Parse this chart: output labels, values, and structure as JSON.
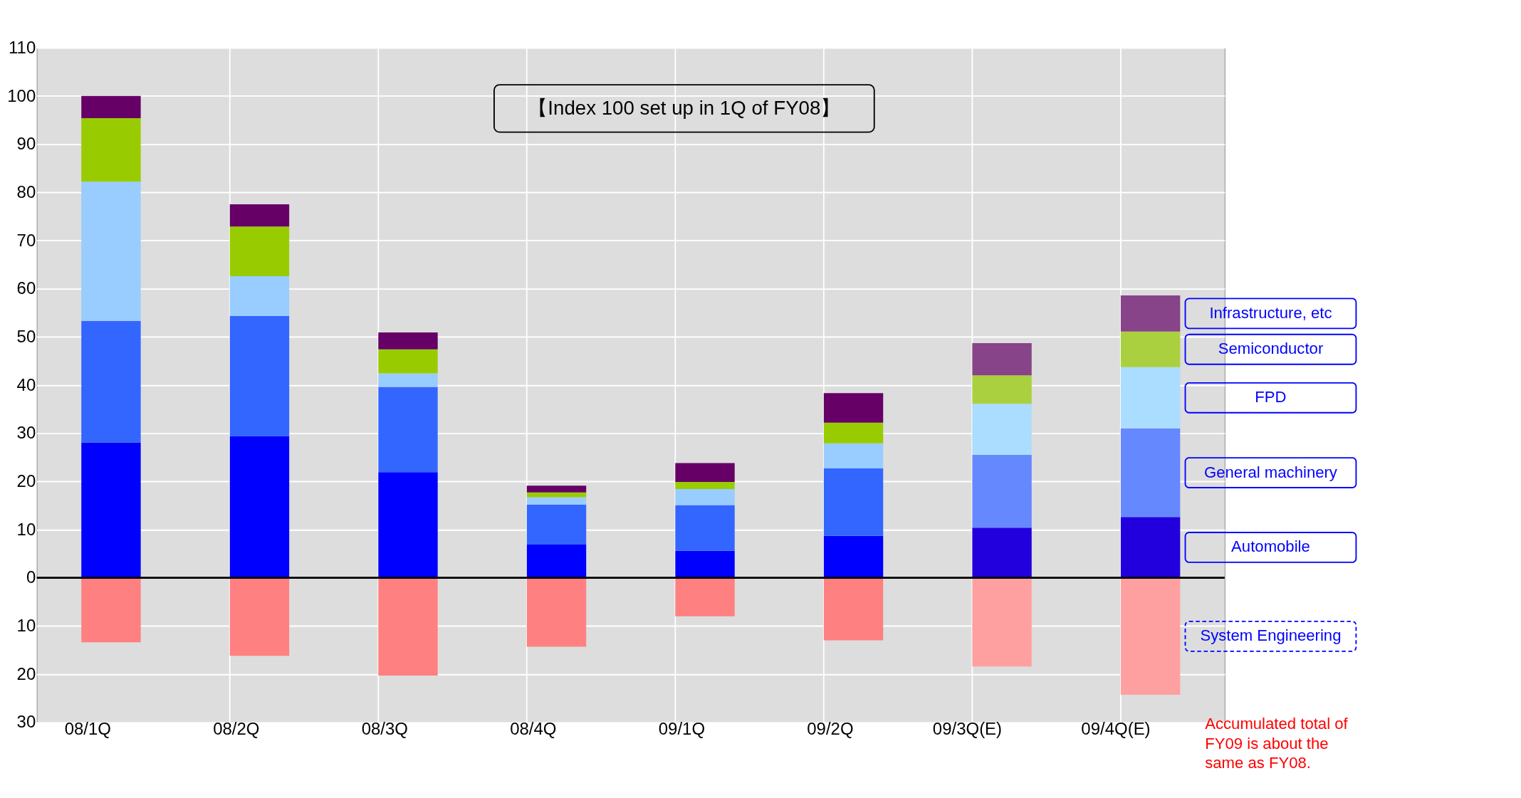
{
  "chart_data": {
    "type": "bar",
    "stacked": true,
    "categories": [
      "08/1Q",
      "08/2Q",
      "08/3Q",
      "08/4Q",
      "09/1Q",
      "09/2Q",
      "09/3Q(E)",
      "09/4Q(E)"
    ],
    "series": [
      {
        "name": "Automobile",
        "colors": [
          "#0000ff",
          "#0000ff",
          "#0000ff",
          "#0000ff",
          "#0000ff",
          "#0000ff",
          "#2200dd",
          "#2200dd"
        ],
        "values": [
          28.1,
          29.4,
          21.9,
          6.9,
          5.6,
          8.7,
          10.4,
          12.6
        ]
      },
      {
        "name": "General machinery",
        "colors": [
          "#3366ff",
          "#3366ff",
          "#3366ff",
          "#3366ff",
          "#3366ff",
          "#3366ff",
          "#6688ff",
          "#6688ff"
        ],
        "values": [
          25.2,
          24.9,
          17.7,
          8.3,
          9.5,
          14.0,
          15.1,
          18.4
        ]
      },
      {
        "name": "FPD",
        "colors": [
          "#99ccff",
          "#99ccff",
          "#99ccff",
          "#99ccff",
          "#99ccff",
          "#99ccff",
          "#aaddff",
          "#aaddff"
        ],
        "values": [
          28.9,
          8.3,
          2.8,
          1.5,
          3.3,
          5.2,
          10.6,
          12.7
        ]
      },
      {
        "name": "Semiconductor",
        "colors": [
          "#99cc00",
          "#99cc00",
          "#99cc00",
          "#99cc00",
          "#99cc00",
          "#99cc00",
          "#aad040",
          "#aad040"
        ],
        "values": [
          13.2,
          10.3,
          5.0,
          1.0,
          1.5,
          4.3,
          5.9,
          7.4
        ]
      },
      {
        "name": "Infrastructure, etc",
        "colors": [
          "#660066",
          "#660066",
          "#660066",
          "#660066",
          "#660066",
          "#660066",
          "#884488",
          "#884488"
        ],
        "values": [
          4.6,
          4.6,
          3.5,
          1.4,
          3.9,
          6.1,
          6.7,
          7.5
        ]
      },
      {
        "name": "System Engineering",
        "colors": [
          "#ff8080",
          "#ff8080",
          "#ff8080",
          "#ff8080",
          "#ff8080",
          "#ff8080",
          "#ffa0a0",
          "#ffa0a0"
        ],
        "values": [
          -13.4,
          -16.2,
          -20.3,
          -14.3,
          -8.0,
          -13.0,
          -18.4,
          -24.3
        ]
      }
    ],
    "ylim": [
      -30,
      110
    ],
    "yticks": [
      {
        "value": -30,
        "label": "30"
      },
      {
        "value": -20,
        "label": "20"
      },
      {
        "value": -10,
        "label": "10"
      },
      0,
      10,
      20,
      30,
      40,
      50,
      60,
      70,
      80,
      90,
      100,
      110
    ],
    "grid": true,
    "ref_lines": [
      {
        "axis": "y",
        "value": 0,
        "color": "#000000"
      }
    ],
    "annotations": [
      "【Index 100 set up in 1Q of FY08】",
      "Accumulated total of FY09 is about the same as FY08."
    ]
  }
}
